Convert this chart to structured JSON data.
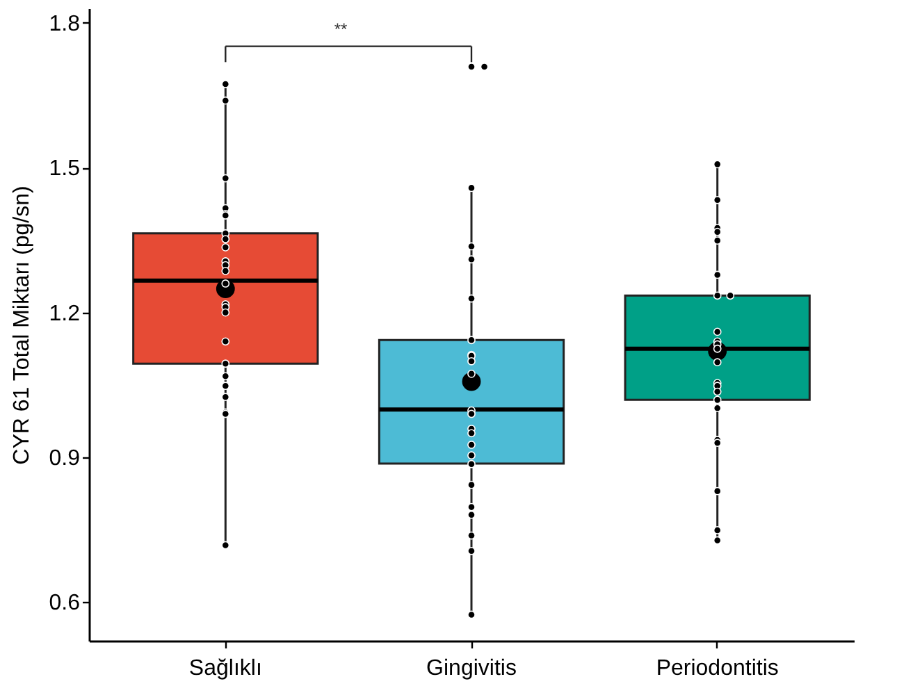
{
  "chart_data": {
    "type": "box",
    "ylabel": "CYR 61 Total Miktarı (pg/sn)",
    "categories": [
      "Sağlıklı",
      "Gingivitis",
      "Periodontitis"
    ],
    "colors": [
      "#e64b35",
      "#4dbbd5",
      "#00a087"
    ],
    "boxes": [
      {
        "low": 0.72,
        "q1": 1.094,
        "median": 1.266,
        "q3": 1.364,
        "high": 1.671,
        "mean": 1.249
      },
      {
        "low": 0.577,
        "q1": 0.887,
        "median": 0.999,
        "q3": 1.143,
        "high": 1.458,
        "mean": 1.057
      },
      {
        "low": 0.729,
        "q1": 1.019,
        "median": 1.125,
        "q3": 1.235,
        "high": 1.504,
        "mean": 1.12
      }
    ],
    "series": [
      {
        "type": "scatter",
        "color": "#000000",
        "x": [
          "Sağlıklı",
          "Sağlıklı",
          "Sağlıklı",
          "Sağlıklı",
          "Sağlıklı",
          "Sağlıklı",
          "Sağlıklı",
          "Sağlıklı",
          "Sağlıklı",
          "Sağlıklı",
          "Sağlıklı",
          "Sağlıklı",
          "Sağlıklı",
          "Sağlıklı",
          "Sağlıklı",
          "Sağlıklı",
          "Sağlıklı",
          "Sağlıklı",
          "Sağlıklı",
          "Sağlıklı",
          "Sağlıklı",
          "Sağlıklı",
          "Sağlıklı",
          "Sağlıklı",
          "Gingivitis",
          "Gingivitis",
          "Gingivitis",
          "Gingivitis",
          "Gingivitis",
          "Gingivitis",
          "Gingivitis",
          "Gingivitis",
          "Gingivitis",
          "Gingivitis",
          "Gingivitis",
          "Gingivitis",
          "Gingivitis",
          "Gingivitis",
          "Gingivitis",
          "Gingivitis",
          "Gingivitis",
          "Gingivitis",
          "Gingivitis",
          "Gingivitis",
          "Gingivitis",
          "Gingivitis",
          "Gingivitis",
          "Gingivitis",
          "Periodontitis",
          "Periodontitis",
          "Periodontitis",
          "Periodontitis",
          "Periodontitis",
          "Periodontitis",
          "Periodontitis",
          "Periodontitis",
          "Periodontitis",
          "Periodontitis",
          "Periodontitis",
          "Periodontitis",
          "Periodontitis",
          "Periodontitis",
          "Periodontitis",
          "Periodontitis",
          "Periodontitis",
          "Periodontitis",
          "Periodontitis",
          "Periodontitis",
          "Periodontitis",
          "Periodontitis",
          "Periodontitis"
        ],
        "values": [
          1.673,
          1.639,
          1.478,
          1.416,
          1.404,
          1.401,
          1.364,
          1.352,
          1.335,
          1.306,
          1.298,
          1.286,
          1.26,
          1.217,
          1.211,
          1.2,
          1.14,
          1.094,
          1.068,
          1.048,
          1.025,
          0.993,
          0.99,
          0.718,
          1.709,
          1.709,
          1.458,
          1.337,
          1.31,
          1.229,
          1.143,
          1.112,
          1.11,
          1.099,
          1.073,
          0.997,
          0.99,
          0.959,
          0.95,
          0.926,
          0.904,
          0.886,
          0.843,
          0.797,
          0.781,
          0.738,
          0.706,
          0.574,
          1.507,
          1.433,
          1.375,
          1.367,
          1.349,
          1.278,
          1.235,
          1.235,
          1.16,
          1.14,
          1.134,
          1.125,
          1.097,
          1.054,
          1.048,
          1.036,
          1.019,
          1.002,
          0.936,
          0.93,
          0.83,
          0.749,
          0.728
        ]
      }
    ],
    "annotations": [
      "**"
    ],
    "ylim": [
      0.52,
      1.83
    ],
    "yticks": [
      0.6,
      0.9,
      1.2,
      1.5,
      1.8
    ],
    "grid": false,
    "legend": false
  }
}
